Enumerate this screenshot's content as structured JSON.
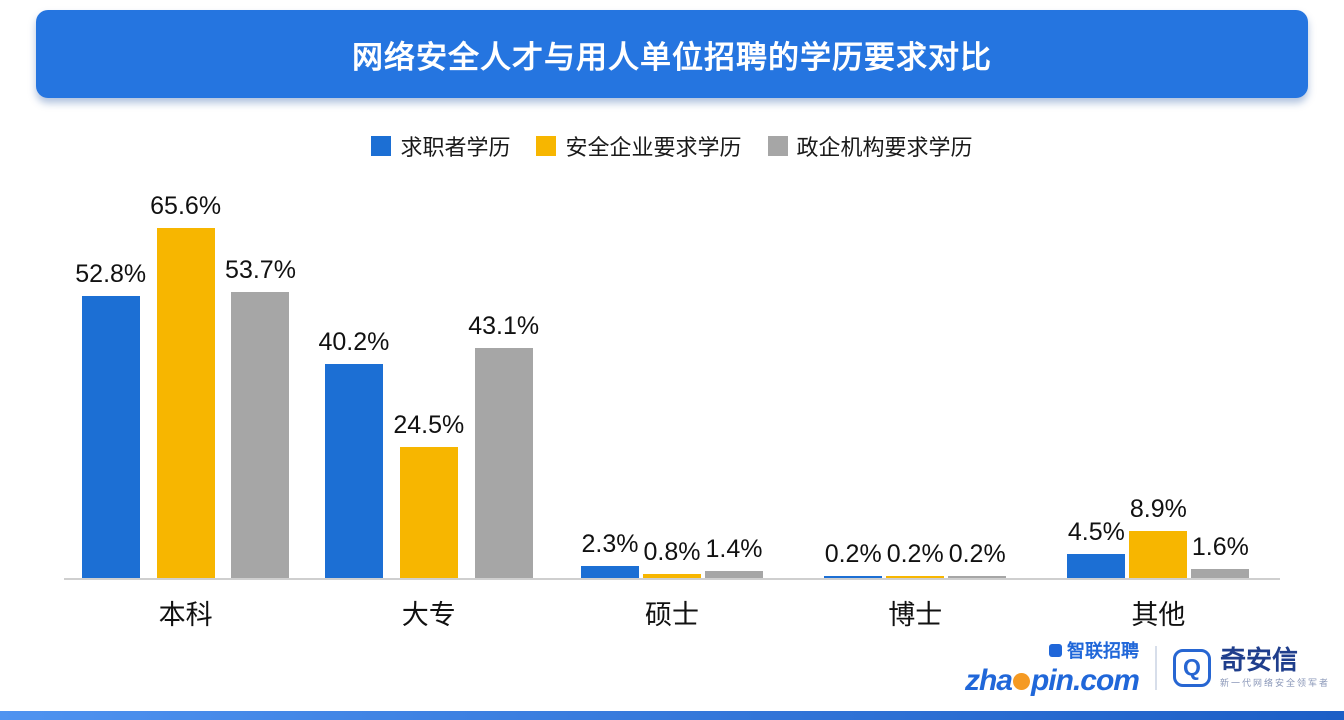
{
  "title": "网络安全人才与用人单位招聘的学历要求对比",
  "chart_data": {
    "type": "bar",
    "title": "网络安全人才与用人单位招聘的学历要求对比",
    "categories": [
      "本科",
      "大专",
      "硕士",
      "博士",
      "其他"
    ],
    "series": [
      {
        "name": "求职者学历",
        "color": "#1C6FD4",
        "values": [
          52.8,
          40.2,
          2.3,
          0.2,
          4.5
        ]
      },
      {
        "name": "安全企业要求学历",
        "color": "#F7B600",
        "values": [
          65.6,
          24.5,
          0.8,
          0.2,
          8.9
        ]
      },
      {
        "name": "政企机构要求学历",
        "color": "#A6A6A6",
        "values": [
          53.7,
          43.1,
          1.4,
          0.2,
          1.6
        ]
      }
    ],
    "value_suffix": "%",
    "ylim": [
      0,
      70
    ],
    "grid": false,
    "legend_position": "top",
    "xlabel": "",
    "ylabel": ""
  },
  "footer": {
    "zhaopin_cn": "智联招聘",
    "zhaopin_en_left": "zha",
    "zhaopin_en_right": "pin.com",
    "qianxin_name": "奇安信",
    "qianxin_tagline": "新一代网络安全领军者",
    "qianxin_icon_glyph": "Q"
  },
  "colors": {
    "banner": "#2575E0",
    "axis": "#CFCFCF"
  }
}
